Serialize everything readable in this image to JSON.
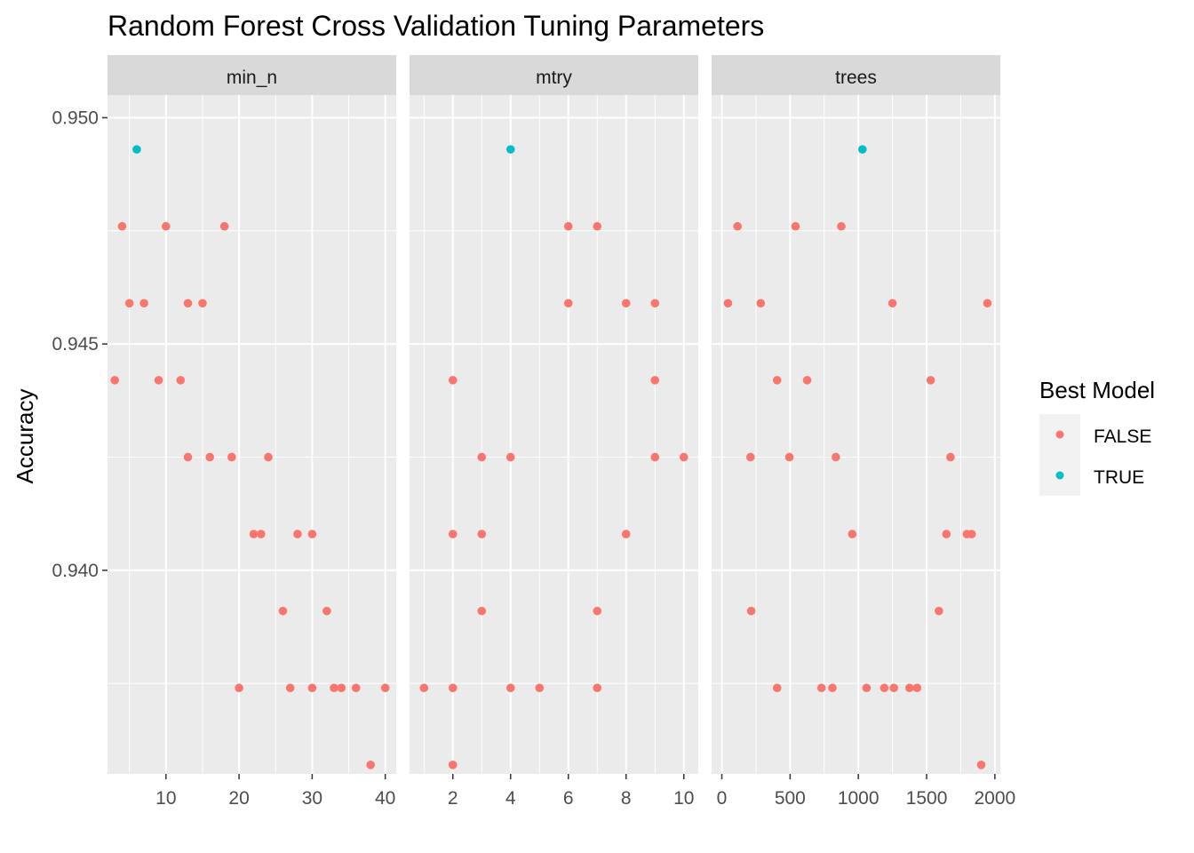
{
  "chart_data": {
    "type": "scatter",
    "title": "Random Forest Cross Validation Tuning Parameters",
    "ylabel": "Accuracy",
    "xlabel": "",
    "ylim": [
      0.9355,
      0.9505
    ],
    "y_ticks": [
      0.94,
      0.945,
      0.95
    ],
    "y_tick_labels": [
      "0.940",
      "0.945",
      "0.950"
    ],
    "grid": true,
    "legend": {
      "title": "Best Model",
      "position": "right",
      "entries": [
        {
          "label": "FALSE",
          "color": "#F8766D"
        },
        {
          "label": "TRUE",
          "color": "#00BFC4"
        }
      ]
    },
    "facets": [
      {
        "name": "min_n",
        "xlim": [
          2.0,
          41.5
        ],
        "x_ticks": [
          10,
          20,
          30,
          40
        ],
        "x_tick_labels": [
          "10",
          "20",
          "30",
          "40"
        ],
        "points": [
          {
            "x": 6,
            "y": 0.9493,
            "best": "TRUE"
          },
          {
            "x": 4,
            "y": 0.9476,
            "best": "FALSE"
          },
          {
            "x": 10,
            "y": 0.9476,
            "best": "FALSE"
          },
          {
            "x": 18,
            "y": 0.9476,
            "best": "FALSE"
          },
          {
            "x": 5,
            "y": 0.9459,
            "best": "FALSE"
          },
          {
            "x": 7,
            "y": 0.9459,
            "best": "FALSE"
          },
          {
            "x": 13,
            "y": 0.9459,
            "best": "FALSE"
          },
          {
            "x": 15,
            "y": 0.9459,
            "best": "FALSE"
          },
          {
            "x": 3,
            "y": 0.9442,
            "best": "FALSE"
          },
          {
            "x": 9,
            "y": 0.9442,
            "best": "FALSE"
          },
          {
            "x": 12,
            "y": 0.9442,
            "best": "FALSE"
          },
          {
            "x": 13,
            "y": 0.9425,
            "best": "FALSE"
          },
          {
            "x": 16,
            "y": 0.9425,
            "best": "FALSE"
          },
          {
            "x": 19,
            "y": 0.9425,
            "best": "FALSE"
          },
          {
            "x": 24,
            "y": 0.9425,
            "best": "FALSE"
          },
          {
            "x": 22,
            "y": 0.9408,
            "best": "FALSE"
          },
          {
            "x": 23,
            "y": 0.9408,
            "best": "FALSE"
          },
          {
            "x": 28,
            "y": 0.9408,
            "best": "FALSE"
          },
          {
            "x": 30,
            "y": 0.9408,
            "best": "FALSE"
          },
          {
            "x": 26,
            "y": 0.9391,
            "best": "FALSE"
          },
          {
            "x": 32,
            "y": 0.9391,
            "best": "FALSE"
          },
          {
            "x": 20,
            "y": 0.9374,
            "best": "FALSE"
          },
          {
            "x": 27,
            "y": 0.9374,
            "best": "FALSE"
          },
          {
            "x": 30,
            "y": 0.9374,
            "best": "FALSE"
          },
          {
            "x": 33,
            "y": 0.9374,
            "best": "FALSE"
          },
          {
            "x": 34,
            "y": 0.9374,
            "best": "FALSE"
          },
          {
            "x": 36,
            "y": 0.9374,
            "best": "FALSE"
          },
          {
            "x": 40,
            "y": 0.9374,
            "best": "FALSE"
          },
          {
            "x": 38,
            "y": 0.9357,
            "best": "FALSE"
          }
        ]
      },
      {
        "name": "mtry",
        "xlim": [
          0.5,
          10.5
        ],
        "x_ticks": [
          2,
          4,
          6,
          8,
          10
        ],
        "x_tick_labels": [
          "2",
          "4",
          "6",
          "8",
          "10"
        ],
        "points": [
          {
            "x": 4,
            "y": 0.9493,
            "best": "TRUE"
          },
          {
            "x": 6,
            "y": 0.9476,
            "best": "FALSE"
          },
          {
            "x": 7,
            "y": 0.9476,
            "best": "FALSE"
          },
          {
            "x": 6,
            "y": 0.9459,
            "best": "FALSE"
          },
          {
            "x": 8,
            "y": 0.9459,
            "best": "FALSE"
          },
          {
            "x": 9,
            "y": 0.9459,
            "best": "FALSE"
          },
          {
            "x": 2,
            "y": 0.9442,
            "best": "FALSE"
          },
          {
            "x": 9,
            "y": 0.9442,
            "best": "FALSE"
          },
          {
            "x": 3,
            "y": 0.9425,
            "best": "FALSE"
          },
          {
            "x": 4,
            "y": 0.9425,
            "best": "FALSE"
          },
          {
            "x": 9,
            "y": 0.9425,
            "best": "FALSE"
          },
          {
            "x": 10,
            "y": 0.9425,
            "best": "FALSE"
          },
          {
            "x": 2,
            "y": 0.9408,
            "best": "FALSE"
          },
          {
            "x": 3,
            "y": 0.9408,
            "best": "FALSE"
          },
          {
            "x": 8,
            "y": 0.9408,
            "best": "FALSE"
          },
          {
            "x": 3,
            "y": 0.9391,
            "best": "FALSE"
          },
          {
            "x": 7,
            "y": 0.9391,
            "best": "FALSE"
          },
          {
            "x": 1,
            "y": 0.9374,
            "best": "FALSE"
          },
          {
            "x": 2,
            "y": 0.9374,
            "best": "FALSE"
          },
          {
            "x": 4,
            "y": 0.9374,
            "best": "FALSE"
          },
          {
            "x": 5,
            "y": 0.9374,
            "best": "FALSE"
          },
          {
            "x": 7,
            "y": 0.9374,
            "best": "FALSE"
          },
          {
            "x": 2,
            "y": 0.9357,
            "best": "FALSE"
          }
        ]
      },
      {
        "name": "trees",
        "xlim": [
          -75,
          2040
        ],
        "x_ticks": [
          0,
          500,
          1000,
          1500,
          2000
        ],
        "x_tick_labels": [
          "0",
          "500",
          "1000",
          "1500",
          "2000"
        ],
        "points": [
          {
            "x": 1030,
            "y": 0.9493,
            "best": "TRUE"
          },
          {
            "x": 115,
            "y": 0.9476,
            "best": "FALSE"
          },
          {
            "x": 540,
            "y": 0.9476,
            "best": "FALSE"
          },
          {
            "x": 875,
            "y": 0.9476,
            "best": "FALSE"
          },
          {
            "x": 45,
            "y": 0.9459,
            "best": "FALSE"
          },
          {
            "x": 285,
            "y": 0.9459,
            "best": "FALSE"
          },
          {
            "x": 1250,
            "y": 0.9459,
            "best": "FALSE"
          },
          {
            "x": 1945,
            "y": 0.9459,
            "best": "FALSE"
          },
          {
            "x": 405,
            "y": 0.9442,
            "best": "FALSE"
          },
          {
            "x": 625,
            "y": 0.9442,
            "best": "FALSE"
          },
          {
            "x": 1530,
            "y": 0.9442,
            "best": "FALSE"
          },
          {
            "x": 210,
            "y": 0.9425,
            "best": "FALSE"
          },
          {
            "x": 495,
            "y": 0.9425,
            "best": "FALSE"
          },
          {
            "x": 835,
            "y": 0.9425,
            "best": "FALSE"
          },
          {
            "x": 1675,
            "y": 0.9425,
            "best": "FALSE"
          },
          {
            "x": 955,
            "y": 0.9408,
            "best": "FALSE"
          },
          {
            "x": 1645,
            "y": 0.9408,
            "best": "FALSE"
          },
          {
            "x": 1795,
            "y": 0.9408,
            "best": "FALSE"
          },
          {
            "x": 1830,
            "y": 0.9408,
            "best": "FALSE"
          },
          {
            "x": 215,
            "y": 0.9391,
            "best": "FALSE"
          },
          {
            "x": 1590,
            "y": 0.9391,
            "best": "FALSE"
          },
          {
            "x": 405,
            "y": 0.9374,
            "best": "FALSE"
          },
          {
            "x": 730,
            "y": 0.9374,
            "best": "FALSE"
          },
          {
            "x": 810,
            "y": 0.9374,
            "best": "FALSE"
          },
          {
            "x": 1060,
            "y": 0.9374,
            "best": "FALSE"
          },
          {
            "x": 1190,
            "y": 0.9374,
            "best": "FALSE"
          },
          {
            "x": 1260,
            "y": 0.9374,
            "best": "FALSE"
          },
          {
            "x": 1375,
            "y": 0.9374,
            "best": "FALSE"
          },
          {
            "x": 1430,
            "y": 0.9374,
            "best": "FALSE"
          },
          {
            "x": 1900,
            "y": 0.9357,
            "best": "FALSE"
          }
        ]
      }
    ]
  }
}
